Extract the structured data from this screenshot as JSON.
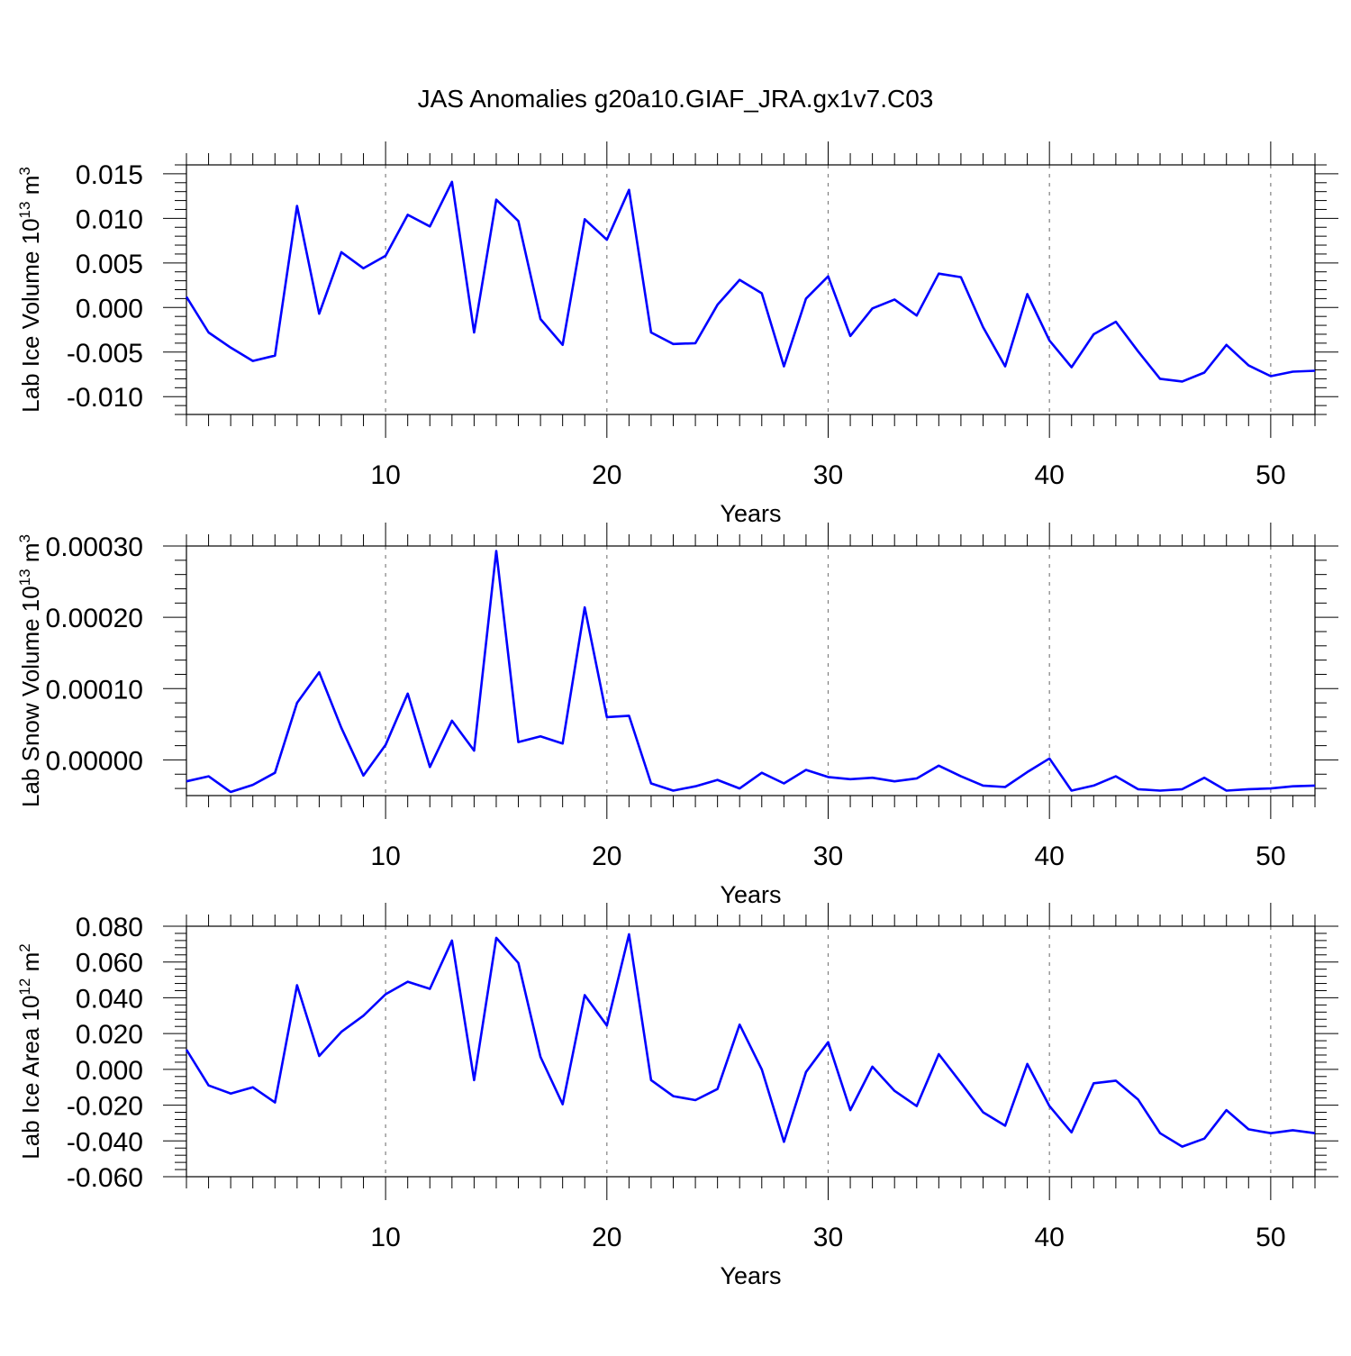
{
  "title": "JAS Anomalies g20a10.GIAF_JRA.gx1v7.C03",
  "colors": {
    "line": "#0000ff",
    "axis": "#000000",
    "grid": "#808080",
    "background": "#ffffff"
  },
  "chart_data": [
    {
      "type": "line",
      "ylabel": "Lab Ice Volume 10",
      "ylabel_exp": "13",
      "ylabel_unit": " m",
      "ylabel_unit_exp": "3",
      "xlabel": "Years",
      "xlim": [
        1,
        52
      ],
      "ylim": [
        -0.012,
        0.016
      ],
      "xticks": [
        10,
        20,
        30,
        40,
        50
      ],
      "xtick_labels": [
        "10",
        "20",
        "30",
        "40",
        "50"
      ],
      "yticks": [
        -0.01,
        -0.005,
        0.0,
        0.005,
        0.01,
        0.015
      ],
      "ytick_labels": [
        "-0.010",
        "-0.005",
        "0.000",
        "0.005",
        "0.010",
        "0.015"
      ],
      "grid": "vertical dashed at major x ticks",
      "x": [
        1,
        2,
        3,
        4,
        5,
        6,
        7,
        8,
        9,
        10,
        11,
        12,
        13,
        14,
        15,
        16,
        17,
        18,
        19,
        20,
        21,
        22,
        23,
        24,
        25,
        26,
        27,
        28,
        29,
        30,
        31,
        32,
        33,
        34,
        35,
        36,
        37,
        38,
        39,
        40,
        41,
        42,
        43,
        44,
        45,
        46,
        47,
        48,
        49,
        50,
        51,
        52
      ],
      "values": [
        0.0012,
        -0.0028,
        -0.0045,
        -0.006,
        -0.0054,
        0.0114,
        -0.0007,
        0.0062,
        0.0044,
        0.0058,
        0.0104,
        0.0091,
        0.0141,
        -0.0028,
        0.0121,
        0.0097,
        -0.0013,
        -0.0042,
        0.0099,
        0.0076,
        0.0132,
        -0.0028,
        -0.0041,
        -0.004,
        0.0003,
        0.0031,
        0.0016,
        -0.0066,
        0.001,
        0.0035,
        -0.0032,
        -0.0001,
        0.0009,
        -0.0009,
        0.0038,
        0.0034,
        -0.0022,
        -0.0066,
        0.0015,
        -0.0037,
        -0.0067,
        -0.003,
        -0.0016,
        -0.0049,
        -0.008,
        -0.0083,
        -0.0073,
        -0.0042,
        -0.0065,
        -0.0077,
        -0.0072,
        -0.0071
      ]
    },
    {
      "type": "line",
      "ylabel": "Lab Snow Volume 10",
      "ylabel_exp": "13",
      "ylabel_unit": " m",
      "ylabel_unit_exp": "3",
      "xlabel": "Years",
      "xlim": [
        1,
        52
      ],
      "ylim": [
        -5e-05,
        0.0003
      ],
      "xticks": [
        10,
        20,
        30,
        40,
        50
      ],
      "xtick_labels": [
        "10",
        "20",
        "30",
        "40",
        "50"
      ],
      "yticks": [
        0.0,
        0.0001,
        0.0002,
        0.0003
      ],
      "ytick_labels": [
        "0.00000",
        "0.00010",
        "0.00020",
        "0.00030"
      ],
      "grid": "vertical dashed at major x ticks",
      "x": [
        1,
        2,
        3,
        4,
        5,
        6,
        7,
        8,
        9,
        10,
        11,
        12,
        13,
        14,
        15,
        16,
        17,
        18,
        19,
        20,
        21,
        22,
        23,
        24,
        25,
        26,
        27,
        28,
        29,
        30,
        31,
        32,
        33,
        34,
        35,
        36,
        37,
        38,
        39,
        40,
        41,
        42,
        43,
        44,
        45,
        46,
        47,
        48,
        49,
        50,
        51,
        52
      ],
      "values": [
        -3e-05,
        -2.3e-05,
        -4.5e-05,
        -3.5e-05,
        -1.8e-05,
        8e-05,
        0.000123,
        4.5e-05,
        -2.2e-05,
        2.1e-05,
        9.3e-05,
        -1e-05,
        5.5e-05,
        1.3e-05,
        0.000293,
        2.5e-05,
        3.3e-05,
        2.3e-05,
        0.000214,
        6e-05,
        6.2e-05,
        -3.3e-05,
        -4.3e-05,
        -3.7e-05,
        -2.8e-05,
        -4e-05,
        -1.8e-05,
        -3.3e-05,
        -1.4e-05,
        -2.4e-05,
        -2.7e-05,
        -2.5e-05,
        -3e-05,
        -2.6e-05,
        -8e-06,
        -2.3e-05,
        -3.6e-05,
        -3.8e-05,
        -1.7e-05,
        2e-06,
        -4.3e-05,
        -3.6e-05,
        -2.3e-05,
        -4.1e-05,
        -4.3e-05,
        -4.1e-05,
        -2.5e-05,
        -4.3e-05,
        -4.1e-05,
        -4e-05,
        -3.7e-05,
        -3.6e-05
      ]
    },
    {
      "type": "line",
      "ylabel": "Lab Ice Area 10",
      "ylabel_exp": "12",
      "ylabel_unit": " m",
      "ylabel_unit_exp": "2",
      "xlabel": "Years",
      "xlim": [
        1,
        52
      ],
      "ylim": [
        -0.06,
        0.08
      ],
      "xticks": [
        10,
        20,
        30,
        40,
        50
      ],
      "xtick_labels": [
        "10",
        "20",
        "30",
        "40",
        "50"
      ],
      "yticks": [
        -0.06,
        -0.04,
        -0.02,
        0.0,
        0.02,
        0.04,
        0.06,
        0.08
      ],
      "ytick_labels": [
        "-0.060",
        "-0.040",
        "-0.020",
        "0.000",
        "0.020",
        "0.040",
        "0.060",
        "0.080"
      ],
      "grid": "vertical dashed at major x ticks",
      "x": [
        1,
        2,
        3,
        4,
        5,
        6,
        7,
        8,
        9,
        10,
        11,
        12,
        13,
        14,
        15,
        16,
        17,
        18,
        19,
        20,
        21,
        22,
        23,
        24,
        25,
        26,
        27,
        28,
        29,
        30,
        31,
        32,
        33,
        34,
        35,
        36,
        37,
        38,
        39,
        40,
        41,
        42,
        43,
        44,
        45,
        46,
        47,
        48,
        49,
        50,
        51,
        52
      ],
      "values": [
        0.011,
        -0.009,
        -0.0135,
        -0.01,
        -0.0185,
        0.047,
        0.0075,
        0.021,
        0.03,
        0.042,
        0.049,
        0.045,
        0.072,
        -0.006,
        0.0735,
        0.0595,
        0.007,
        -0.0195,
        0.0415,
        0.0245,
        0.0755,
        -0.006,
        -0.015,
        -0.0172,
        -0.011,
        0.025,
        0.0,
        -0.0405,
        -0.0015,
        0.0152,
        -0.0228,
        0.0015,
        -0.012,
        -0.0205,
        0.0085,
        -0.0075,
        -0.024,
        -0.0315,
        0.003,
        -0.0205,
        -0.0352,
        -0.0078,
        -0.0063,
        -0.0168,
        -0.0357,
        -0.0432,
        -0.0387,
        -0.0228,
        -0.0335,
        -0.0357,
        -0.034,
        -0.0357
      ]
    }
  ]
}
